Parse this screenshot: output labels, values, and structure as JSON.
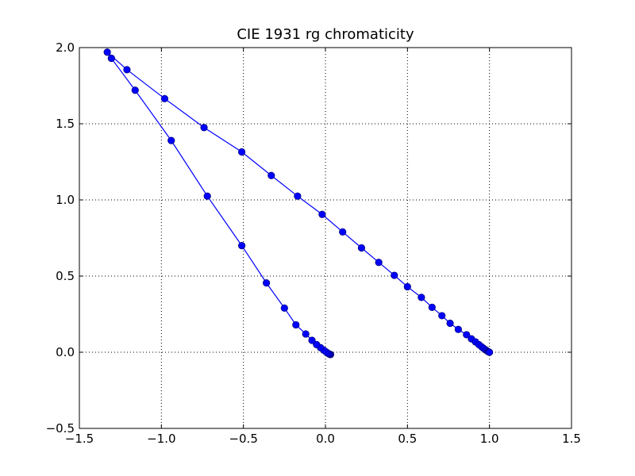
{
  "chart_data": {
    "type": "line",
    "title": "CIE 1931 rg chromaticity",
    "xlabel": "",
    "ylabel": "",
    "xlim": [
      -1.5,
      1.5
    ],
    "ylim": [
      -0.5,
      2.0
    ],
    "xticks": [
      -1.5,
      -1.0,
      -0.5,
      0.0,
      0.5,
      1.0,
      1.5
    ],
    "yticks": [
      -0.5,
      0.0,
      0.5,
      1.0,
      1.5,
      2.0
    ],
    "xtick_labels": [
      "−1.5",
      "−1.0",
      "−0.5",
      "0.0",
      "0.5",
      "1.0",
      "1.5"
    ],
    "ytick_labels": [
      "−0.5",
      "0.0",
      "0.5",
      "1.0",
      "1.5",
      "2.0"
    ],
    "grid": true,
    "series": [
      {
        "color": "#0000ff",
        "marker": "circle",
        "x": [
          0.031,
          0.028,
          0.025,
          0.02,
          0.013,
          0.003,
          -0.011,
          -0.03,
          -0.054,
          -0.082,
          -0.12,
          -0.18,
          -0.25,
          -0.36,
          -0.51,
          -0.72,
          -0.94,
          -1.16,
          -1.305,
          -1.33,
          -1.21,
          -0.98,
          -0.74,
          -0.51,
          -0.33,
          -0.17,
          -0.02,
          0.105,
          0.22,
          0.325,
          0.42,
          0.5,
          0.585,
          0.65,
          0.71,
          0.76,
          0.81,
          0.86,
          0.89,
          0.915,
          0.935,
          0.952,
          0.965,
          0.976,
          0.985,
          0.992,
          0.997,
          1.0
        ],
        "y": [
          -0.015,
          -0.014,
          -0.012,
          -0.01,
          -0.005,
          0.003,
          0.014,
          0.03,
          0.05,
          0.078,
          0.12,
          0.18,
          0.29,
          0.455,
          0.7,
          1.025,
          1.39,
          1.72,
          1.93,
          1.97,
          1.855,
          1.665,
          1.475,
          1.315,
          1.16,
          1.025,
          0.905,
          0.79,
          0.685,
          0.59,
          0.505,
          0.43,
          0.36,
          0.295,
          0.24,
          0.19,
          0.15,
          0.115,
          0.088,
          0.068,
          0.05,
          0.036,
          0.025,
          0.016,
          0.009,
          0.004,
          0.001,
          0.0
        ]
      }
    ]
  }
}
